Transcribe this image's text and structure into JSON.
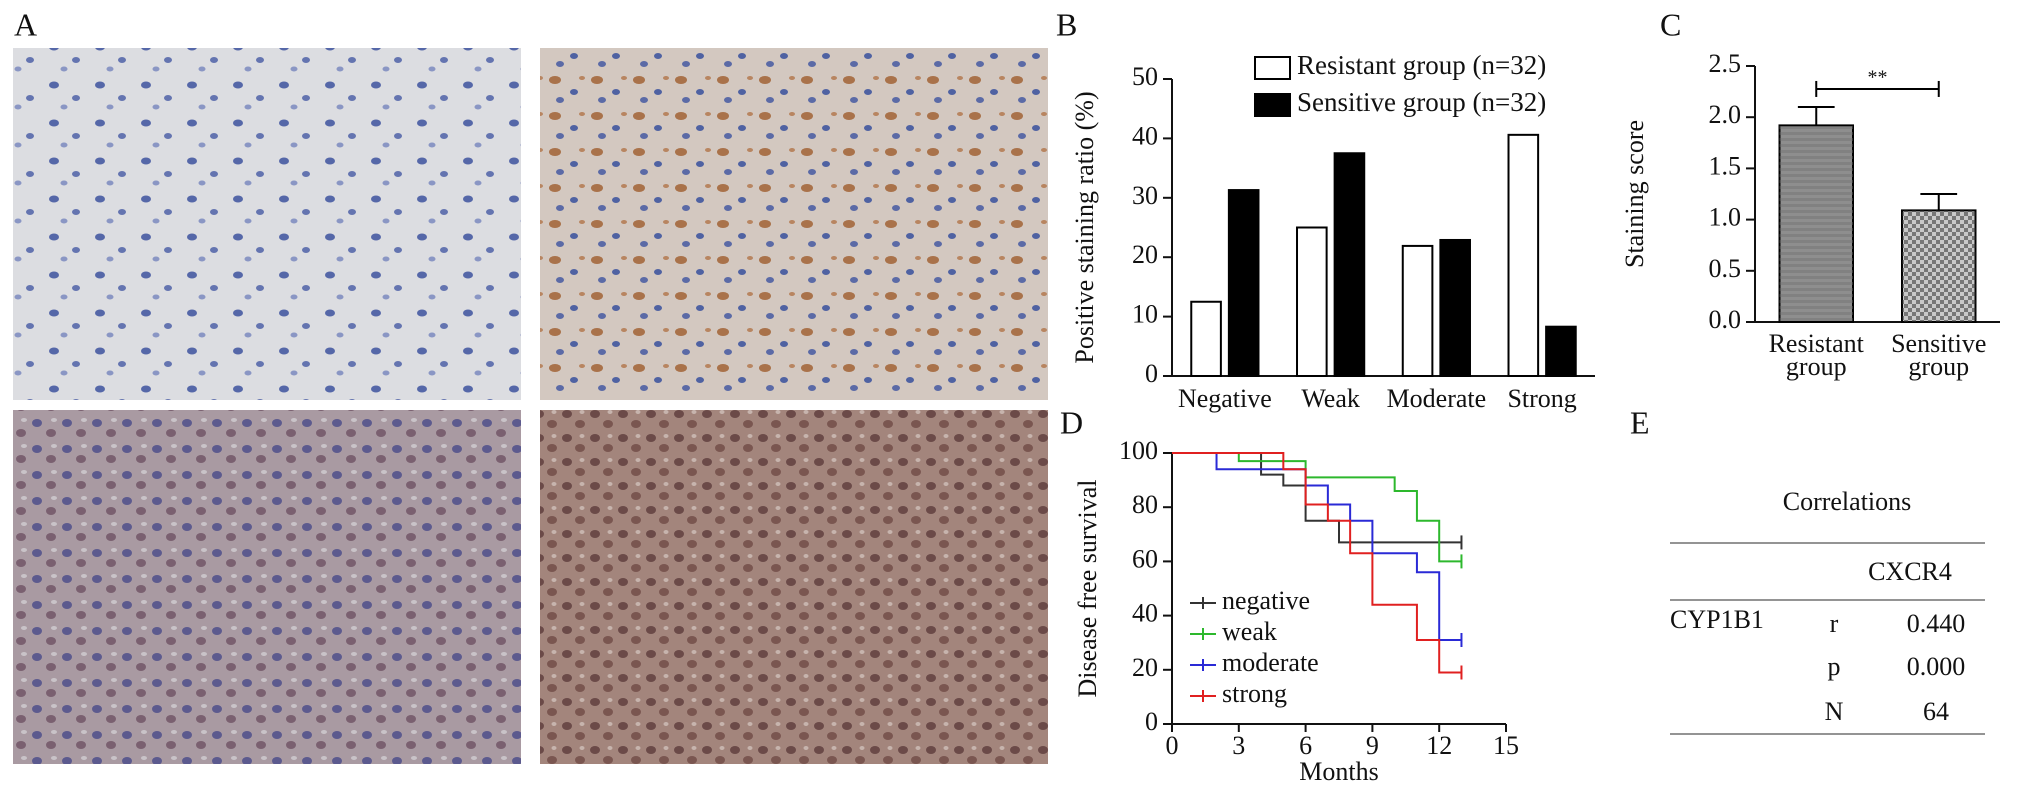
{
  "panel_labels": [
    "A",
    "B",
    "C",
    "D",
    "E"
  ],
  "chart_data": [
    {
      "type": "bar",
      "ylabel": "Positive staining ratio (%)",
      "categories": [
        "Negative",
        "Weak",
        "Moderate",
        "Strong"
      ],
      "series": [
        {
          "name": "Resistant group (n=32)",
          "color": "#ffffff",
          "values": [
            12.5,
            25,
            21.9,
            40.6
          ]
        },
        {
          "name": "Sensitive group (n=32)",
          "color": "#000000",
          "values": [
            31.3,
            37.5,
            22.9,
            8.3
          ]
        }
      ],
      "ylim": [
        0,
        50
      ],
      "yticks": [
        0,
        10,
        20,
        30,
        40,
        50
      ],
      "legend": "upper right"
    },
    {
      "type": "bar",
      "ylabel": "Staining score",
      "categories": [
        "Resistant group",
        "Sensitive group"
      ],
      "values": [
        1.92,
        1.09
      ],
      "errors": [
        0.18,
        0.16
      ],
      "colors": [
        "#8e8e8e",
        "#c8c8c8"
      ],
      "annotation": "**",
      "ylim": [
        0,
        2.5
      ],
      "yticks": [
        {
          "value": 0,
          "label": "0.0"
        },
        0.5,
        {
          "value": 1,
          "label": "1.0"
        },
        1.5,
        {
          "value": 2,
          "label": "2.0"
        },
        2.5
      ]
    },
    {
      "type": "line",
      "xlabel": "Months",
      "ylabel": "Disease free survival",
      "series": [
        {
          "name": "negative",
          "color": "#333333",
          "x": [
            0,
            4,
            4,
            5,
            5,
            6,
            6,
            7.5,
            7.5,
            13
          ],
          "values": [
            100,
            100,
            92,
            92,
            88,
            88,
            75,
            75,
            67,
            67
          ]
        },
        {
          "name": "weak",
          "color": "#2db82d",
          "x": [
            0,
            3,
            3,
            6,
            6,
            10,
            10,
            11,
            11,
            12,
            12,
            13
          ],
          "values": [
            100,
            100,
            97,
            97,
            91,
            91,
            86,
            86,
            75,
            75,
            60,
            60
          ]
        },
        {
          "name": "moderate",
          "color": "#2a2ad6",
          "x": [
            0,
            2,
            2,
            6,
            6,
            7,
            7,
            8,
            8,
            9,
            9,
            11,
            11,
            12,
            12,
            13
          ],
          "values": [
            100,
            100,
            94,
            94,
            88,
            88,
            81,
            81,
            75,
            75,
            63,
            63,
            56,
            56,
            31,
            31
          ]
        },
        {
          "name": "strong",
          "color": "#e02020",
          "x": [
            0,
            5,
            5,
            6,
            6,
            7,
            7,
            8,
            8,
            9,
            9,
            11,
            11,
            12,
            12,
            13
          ],
          "values": [
            100,
            100,
            94,
            94,
            81,
            81,
            75,
            75,
            63,
            63,
            44,
            44,
            31,
            31,
            19,
            19
          ]
        }
      ],
      "xlim": [
        0,
        15
      ],
      "xticks": [
        0,
        3,
        6,
        9,
        12,
        15
      ],
      "ylim": [
        0,
        100
      ],
      "yticks": [
        0,
        20,
        40,
        60,
        80,
        100
      ],
      "legend": "lower left"
    }
  ],
  "table": {
    "title": "Correlations",
    "column": "CXCR4",
    "row_group": "CYP1B1",
    "rows": [
      {
        "stat": "r",
        "value": "0.440"
      },
      {
        "stat": "p",
        "value": "0.000"
      },
      {
        "stat": "N",
        "value": "64"
      }
    ]
  }
}
